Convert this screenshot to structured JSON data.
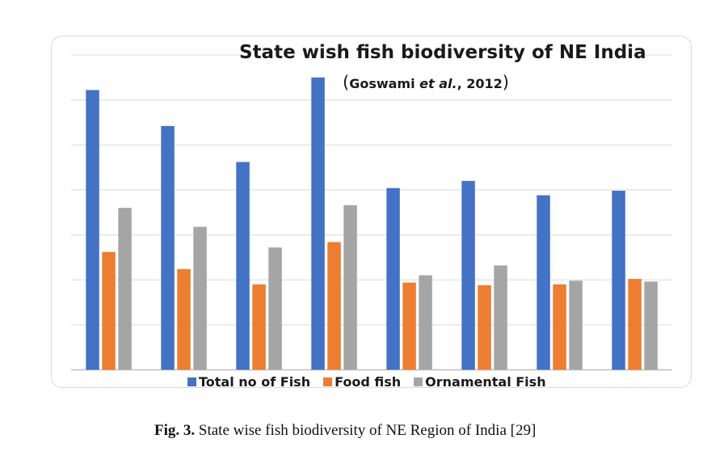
{
  "chart_data": {
    "type": "bar",
    "title": "State wish fish biodiversity of NE India",
    "subtitle": {
      "open_paren": "(",
      "author": "Goswami ",
      "etal": "et al.",
      "year": ", 2012",
      "close_paren": ")"
    },
    "categories": [
      "",
      "",
      "",
      "",
      "",
      "",
      "",
      ""
    ],
    "series": [
      {
        "name": "Total no of Fish",
        "color": "#4472c4",
        "values": [
          311,
          271,
          231,
          325,
          202,
          210,
          194,
          199
        ]
      },
      {
        "name": "Food fish",
        "color": "#ed7d31",
        "values": [
          131,
          112,
          95,
          142,
          97,
          94,
          95,
          101
        ]
      },
      {
        "name": "Ornamental Fish",
        "color": "#a5a5a5",
        "values": [
          180,
          159,
          136,
          183,
          105,
          116,
          99,
          98
        ]
      }
    ],
    "ylim": [
      0,
      350
    ],
    "y_gridline_step": 50,
    "grid": true,
    "legend_position": "bottom",
    "xlabel": "",
    "ylabel": ""
  },
  "caption": {
    "label": "Fig. 3.",
    "text": " State wise fish biodiversity of NE Region of India [29]"
  }
}
